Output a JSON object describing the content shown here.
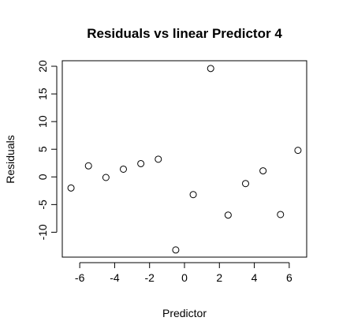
{
  "chart_data": {
    "type": "scatter",
    "title": "Residuals vs linear Predictor 4",
    "xlabel": "Predictor",
    "ylabel": "Residuals",
    "xlim": [
      -7,
      7
    ],
    "ylim": [
      -14.5,
      21
    ],
    "xticks": [
      -6,
      -4,
      -2,
      0,
      2,
      4,
      6
    ],
    "yticks": [
      -10,
      -5,
      0,
      5,
      10,
      15,
      20
    ],
    "grid": false,
    "marker": "open-circle",
    "x": [
      -6.5,
      -5.5,
      -4.5,
      -3.5,
      -2.5,
      -1.5,
      -0.5,
      0.5,
      1.5,
      2.5,
      3.5,
      4.5,
      5.5,
      6.5
    ],
    "y": [
      -2.0,
      2.0,
      -0.1,
      1.4,
      2.4,
      3.2,
      -13.2,
      -3.2,
      19.6,
      -6.9,
      -1.2,
      1.1,
      -6.8,
      4.8
    ]
  }
}
